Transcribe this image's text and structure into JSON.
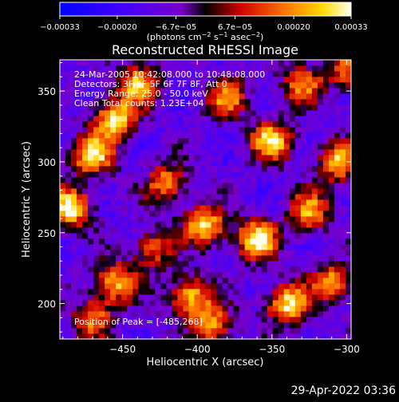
{
  "chart_data": {
    "type": "heatmap",
    "title": "Reconstructed RHESSI Image",
    "xlabel": "Heliocentric X (arcsec)",
    "ylabel": "Heliocentric Y (arcsec)",
    "xlim": [
      -492,
      -297
    ],
    "ylim": [
      175,
      372
    ],
    "x_ticks": [
      -450,
      -400,
      -350,
      -300
    ],
    "x_tick_labels": [
      "−450",
      "−400",
      "−350",
      "−300"
    ],
    "y_ticks": [
      200,
      250,
      300,
      350
    ],
    "y_tick_labels": [
      "200",
      "250",
      "300",
      "350"
    ],
    "colorbar": {
      "range": [
        -0.00033,
        0.00033
      ],
      "ticks": [
        -0.00033,
        -0.0002,
        -6.7e-05,
        6.7e-05,
        0.0002,
        0.00033
      ],
      "tick_labels": [
        "−0.00033",
        "−0.00020",
        "−6.7e−05",
        "6.7e−05",
        "0.00020",
        "0.00033"
      ],
      "unit_label": "(photons cm",
      "unit_exp1": "−2",
      "unit_mid": " s",
      "unit_exp2": "−1",
      "unit_mid2": " asec",
      "unit_exp3": "−2",
      "unit_end": ")"
    },
    "annotations": [
      "24-Mar-2005 10:42:08.000 to 10:48:08.000",
      "Detectors: 3F 4F 5F 6F 7F 8F, Att 0",
      "Energy Range: 25.0 - 50.0 keV",
      "Clean     Total counts: 1.23E+04"
    ],
    "peak_label": "Position of Peak = [-485,268]",
    "peak": [
      -485,
      268
    ],
    "hotspots": [
      {
        "x": -485,
        "y": 268,
        "value": 0.00033
      },
      {
        "x": -470,
        "y": 305,
        "value": 0.0003
      },
      {
        "x": -455,
        "y": 330,
        "value": 0.00031
      },
      {
        "x": -440,
        "y": 355,
        "value": 0.00022
      },
      {
        "x": -470,
        "y": 190,
        "value": 0.00018
      },
      {
        "x": -455,
        "y": 215,
        "value": 0.00024
      },
      {
        "x": -395,
        "y": 255,
        "value": 0.00029
      },
      {
        "x": -405,
        "y": 205,
        "value": 0.00026
      },
      {
        "x": -420,
        "y": 285,
        "value": 0.0002
      },
      {
        "x": -360,
        "y": 245,
        "value": 0.00032
      },
      {
        "x": -350,
        "y": 315,
        "value": 0.00028
      },
      {
        "x": -340,
        "y": 200,
        "value": 0.0003
      },
      {
        "x": -325,
        "y": 265,
        "value": 0.00022
      },
      {
        "x": -305,
        "y": 300,
        "value": 0.00025
      },
      {
        "x": -310,
        "y": 215,
        "value": 0.00021
      },
      {
        "x": -380,
        "y": 345,
        "value": 0.00018
      },
      {
        "x": -330,
        "y": 355,
        "value": 0.00017
      },
      {
        "x": -300,
        "y": 365,
        "value": 0.00016
      },
      {
        "x": -390,
        "y": 185,
        "value": 0.0002
      },
      {
        "x": -430,
        "y": 238,
        "value": 0.00015
      }
    ],
    "grid": false,
    "colormap": [
      "#000000",
      "#0000ff",
      "#8000ff",
      "#ff0000",
      "#ffb000",
      "#ffffc0"
    ]
  },
  "footer": {
    "timestamp": "29-Apr-2022 03:36"
  }
}
